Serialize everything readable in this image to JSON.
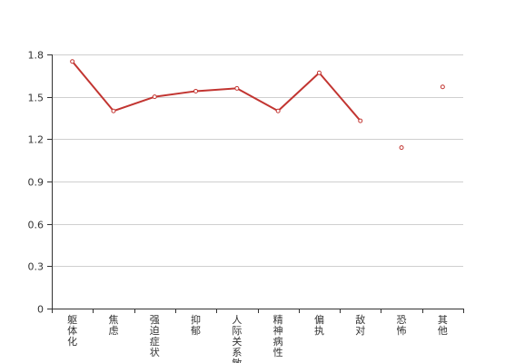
{
  "chart_data": {
    "type": "line",
    "categories": [
      "躯体化",
      "焦虑",
      "强迫症状",
      "抑郁",
      "人际关系敏感",
      "精神病性",
      "偏执",
      "敌对",
      "恐怖",
      "其他"
    ],
    "series": [
      {
        "values": [
          1.75,
          1.4,
          1.5,
          1.54,
          1.56,
          1.4,
          1.67,
          1.33,
          1.14,
          1.57
        ],
        "color": "#c23531"
      }
    ],
    "title": "",
    "xlabel": "",
    "ylabel": "",
    "ylim": [
      0,
      1.8
    ],
    "yticks": [
      "0",
      "0.3",
      "0.6",
      "0.9",
      "1.2",
      "1.5",
      "1.8"
    ],
    "grid": true,
    "line_breaks_after_index": [
      7,
      8
    ]
  }
}
